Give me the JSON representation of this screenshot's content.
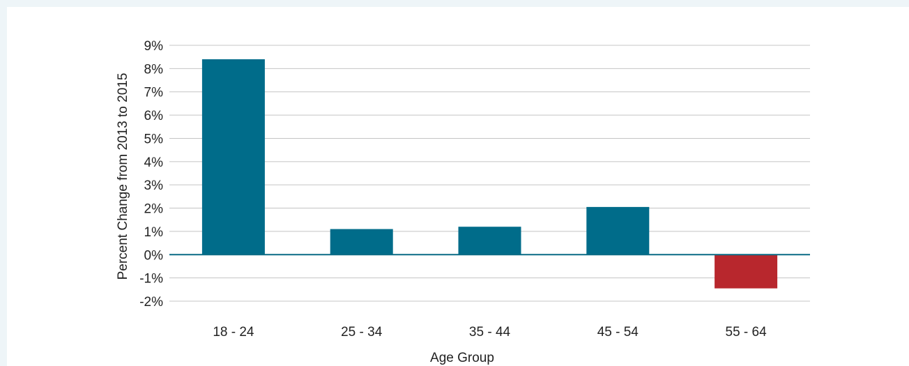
{
  "chart_data": {
    "type": "bar",
    "categories": [
      "18 - 24",
      "25 - 34",
      "35 - 44",
      "45 - 54",
      "55 - 64"
    ],
    "values": [
      8.4,
      1.1,
      1.2,
      2.05,
      -1.45
    ],
    "xlabel": "Age Group",
    "ylabel": "Percent Change from 2013 to 2015",
    "ylim": [
      -2,
      9
    ],
    "yticks": [
      "-2%",
      "-1%",
      "0%",
      "1%",
      "2%",
      "3%",
      "4%",
      "5%",
      "6%",
      "7%",
      "8%",
      "9%"
    ],
    "grid": true,
    "colors": {
      "positive": "#006c8a",
      "negative": "#b8272d",
      "gridline": "#c4c4c4",
      "zero_line": "#0a6b85"
    }
  }
}
